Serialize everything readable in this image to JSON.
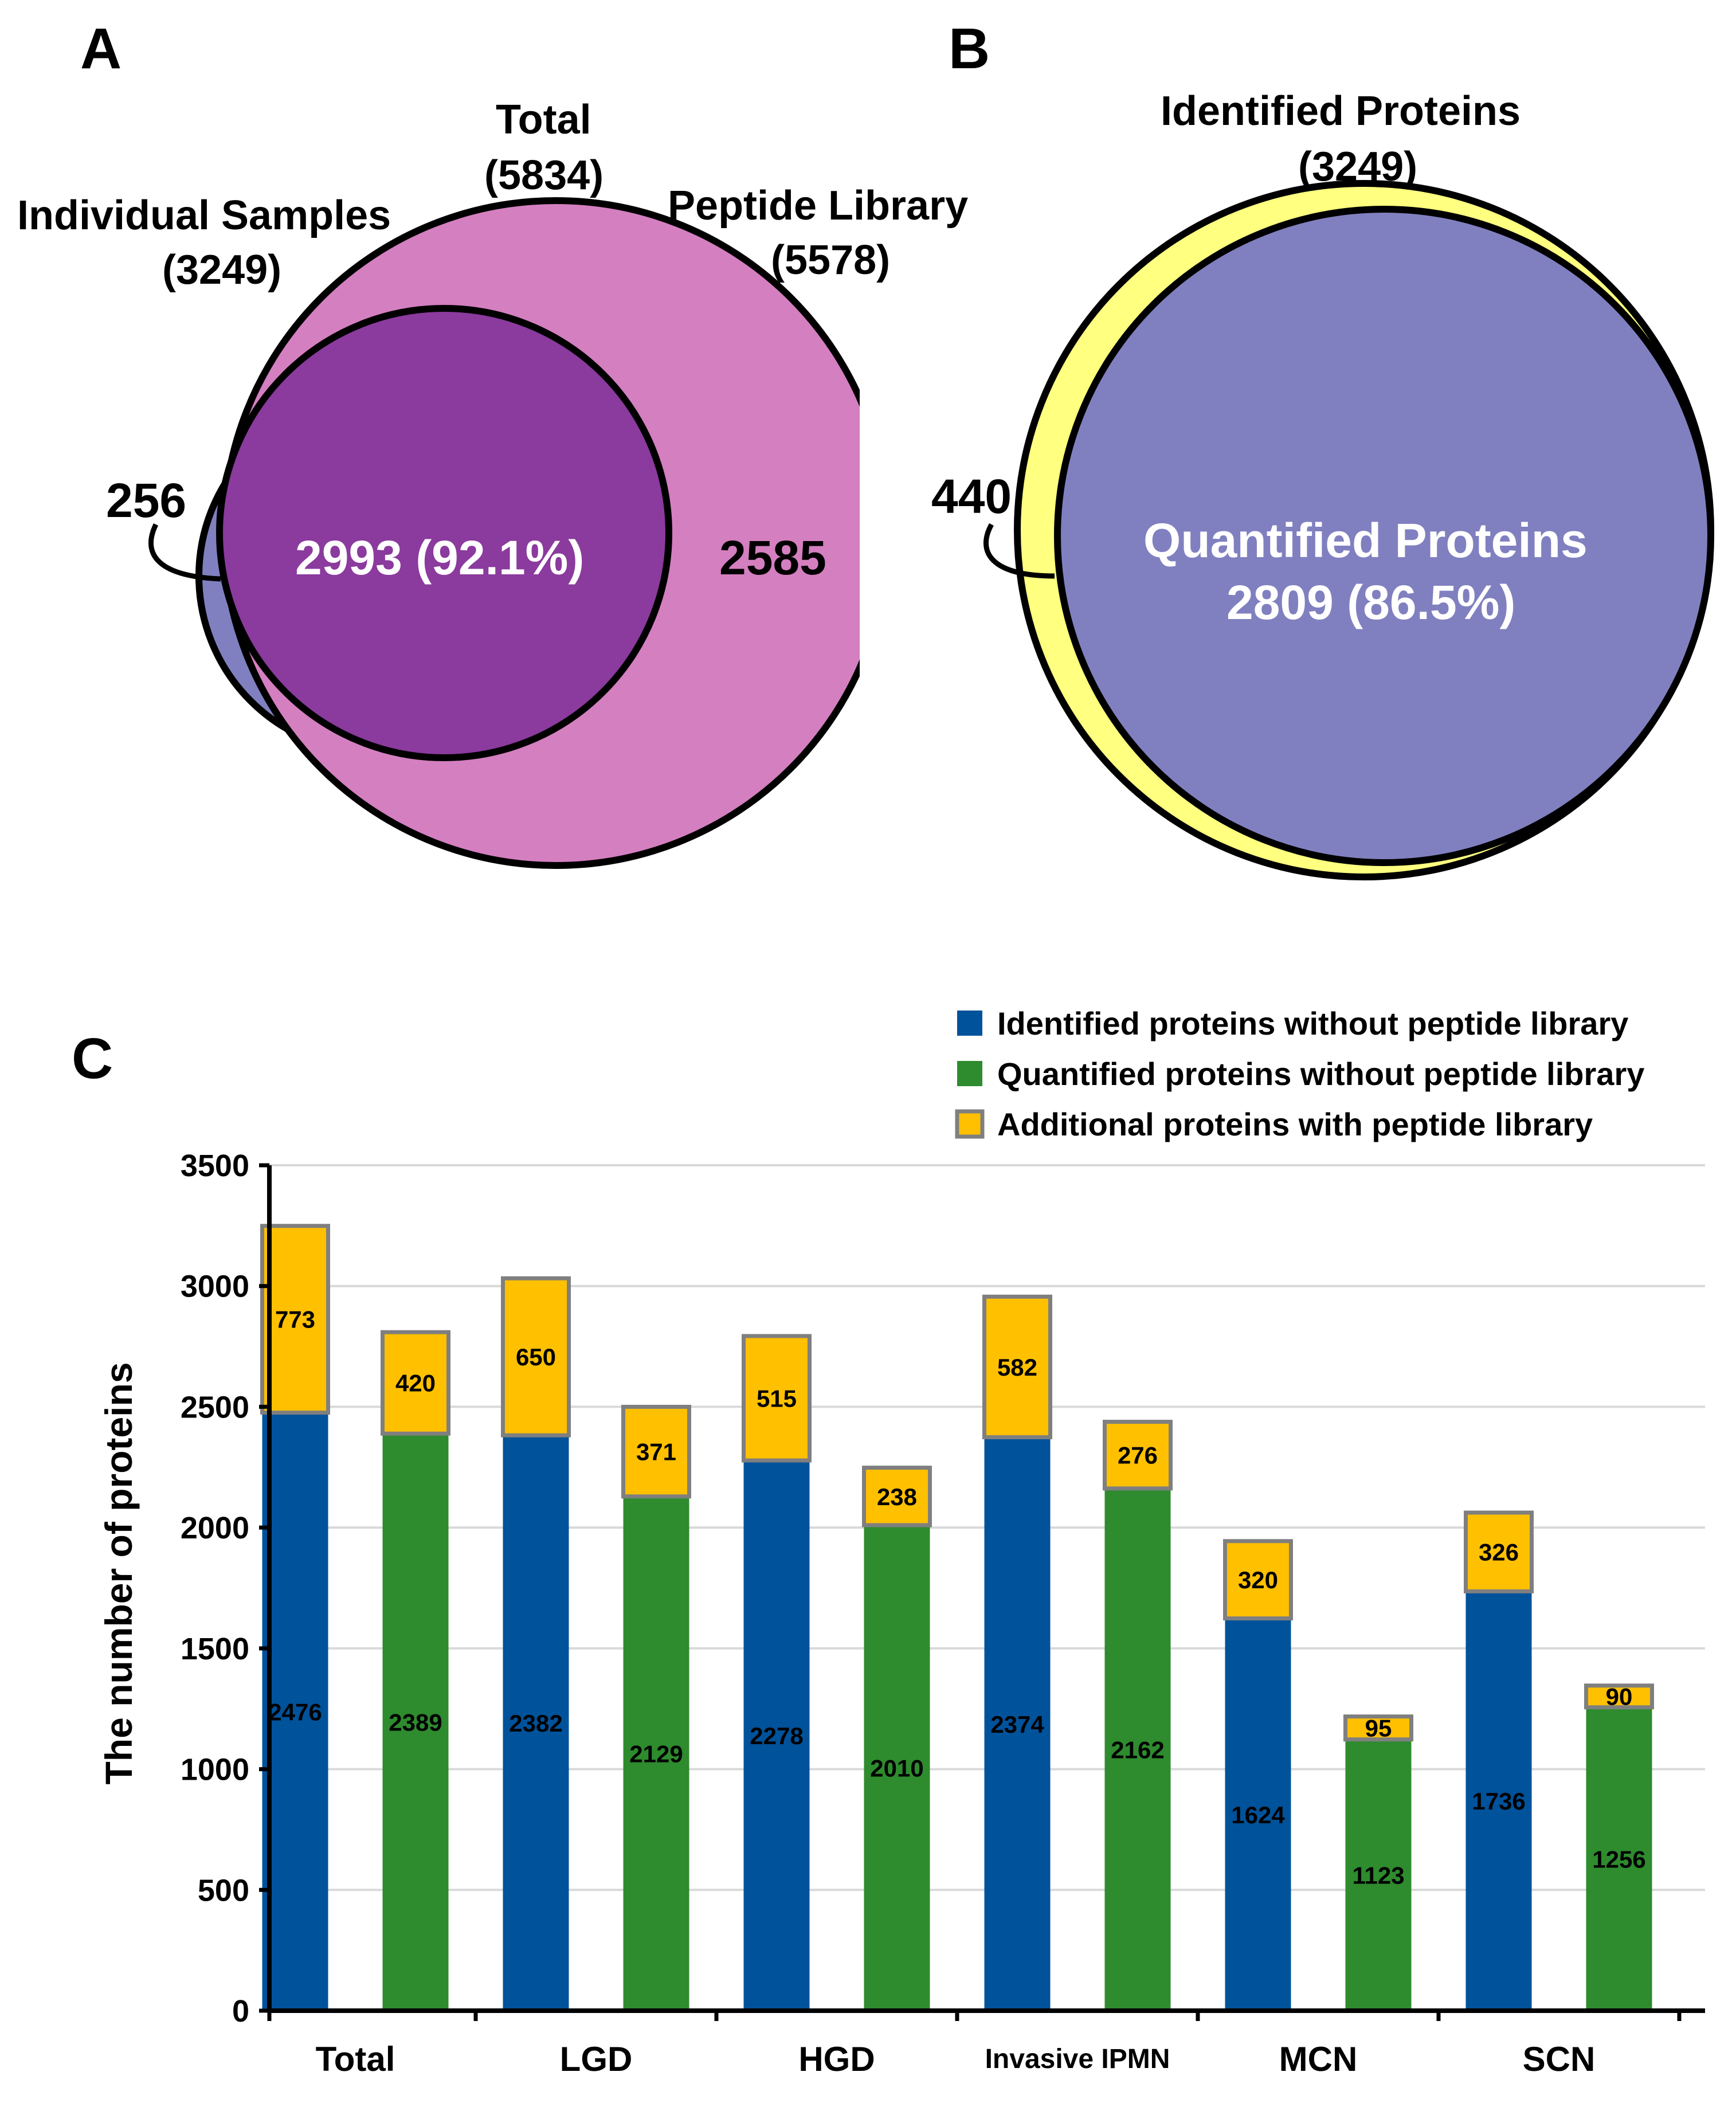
{
  "panels": {
    "a": {
      "letter": "A",
      "total_label": "Total",
      "total_count": "(5834)",
      "individual_label": "Individual Samples",
      "individual_count": "(3249)",
      "library_label": "Peptide Library",
      "library_count": "(5578)",
      "only_individual": "256",
      "overlap": "2993 (92.1%)",
      "only_library": "2585",
      "colors": {
        "individual": "#8080c0",
        "library": "#d47fc0",
        "overlap": "#8b3a9e"
      }
    },
    "b": {
      "letter": "B",
      "identified_label": "Identified Proteins",
      "identified_count": "(3249)",
      "not_quantified": "440",
      "quantified_label": "Quantified Proteins",
      "quantified_count": "2809 (86.5%)",
      "colors": {
        "identified": "#ffff80",
        "quantified": "#8080c0"
      }
    },
    "c": {
      "letter": "C"
    }
  },
  "chart_data": {
    "type": "bar",
    "stacked": true,
    "categories": [
      "Total",
      "LGD",
      "HGD",
      "Invasive IPMN",
      "MCN",
      "SCN"
    ],
    "ylabel": "The number of proteins",
    "xlabel": "",
    "ylim": [
      0,
      3500
    ],
    "yticks": [
      0,
      500,
      1000,
      1500,
      2000,
      2500,
      3000,
      3500
    ],
    "grid": true,
    "legend_position": "top-right",
    "series": [
      {
        "name": "Identified proteins without peptide library",
        "color": "#00529b",
        "values": [
          2476,
          2382,
          2278,
          2374,
          1624,
          1736
        ]
      },
      {
        "name": "Quantified proteins without peptide library",
        "color": "#2e8b2e",
        "values": [
          2389,
          2129,
          2010,
          2162,
          1123,
          1256
        ]
      },
      {
        "name": "Additional proteins with peptide library",
        "color": "#ffc000",
        "stacks_on": [
          "Identified proteins without peptide library",
          "Quantified proteins without peptide library"
        ],
        "values_on_identified": [
          773,
          650,
          515,
          582,
          320,
          326
        ],
        "values_on_quantified": [
          420,
          371,
          238,
          276,
          95,
          90
        ]
      }
    ]
  }
}
